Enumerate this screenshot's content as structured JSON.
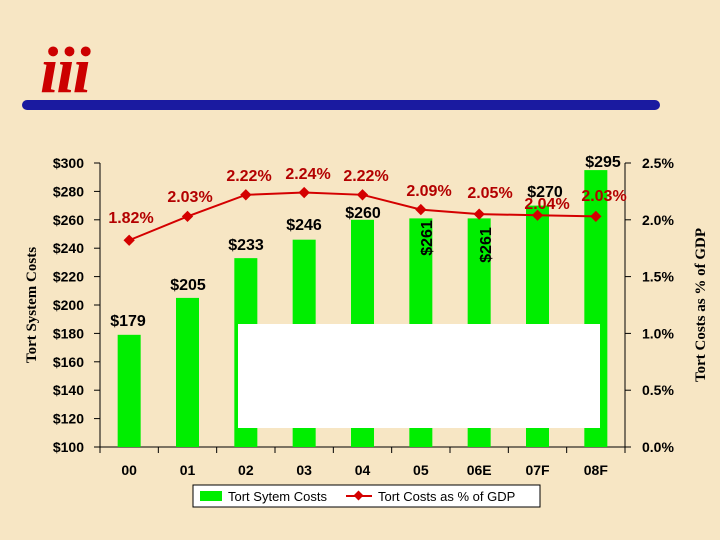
{
  "logo": {
    "text": "iii",
    "color": "#cc0000"
  },
  "colors": {
    "background": "#f7e6c4",
    "bar": "#00ee00",
    "line": "#d40000",
    "divider": "#1a1aa0"
  },
  "chart_data": {
    "type": "bar",
    "categories": [
      "00",
      "01",
      "02",
      "03",
      "04",
      "05",
      "06E",
      "07F",
      "08F"
    ],
    "series": [
      {
        "name": "Tort Sytem Costs",
        "type": "bar",
        "axis": "left",
        "values": [
          179,
          205,
          233,
          246,
          260,
          261,
          261,
          270,
          295
        ],
        "labels": [
          "$179",
          "$205",
          "$233",
          "$246",
          "$260",
          "$261",
          "$261",
          "$270",
          "$295"
        ]
      },
      {
        "name": "Tort Costs as % of GDP",
        "type": "line",
        "axis": "right",
        "values": [
          1.82,
          2.03,
          2.22,
          2.24,
          2.22,
          2.09,
          2.05,
          2.04,
          2.03
        ],
        "labels": [
          "1.82%",
          "2.03%",
          "2.22%",
          "2.24%",
          "2.22%",
          "2.09%",
          "2.05%",
          "2.04%",
          "2.03%"
        ]
      }
    ],
    "ylabel_left": "Tort System Costs",
    "ylabel_right": "Tort Costs as % of GDP",
    "ylim_left": [
      100,
      300
    ],
    "ylim_right": [
      0,
      2.5
    ],
    "yticks_left": [
      "$100",
      "$120",
      "$140",
      "$160",
      "$180",
      "$200",
      "$220",
      "$240",
      "$260",
      "$280",
      "$300"
    ],
    "yticks_right": [
      "0.0%",
      "0.5%",
      "1.0%",
      "1.5%",
      "2.0%",
      "2.5%"
    ],
    "legend_position": "bottom",
    "grid": false
  }
}
